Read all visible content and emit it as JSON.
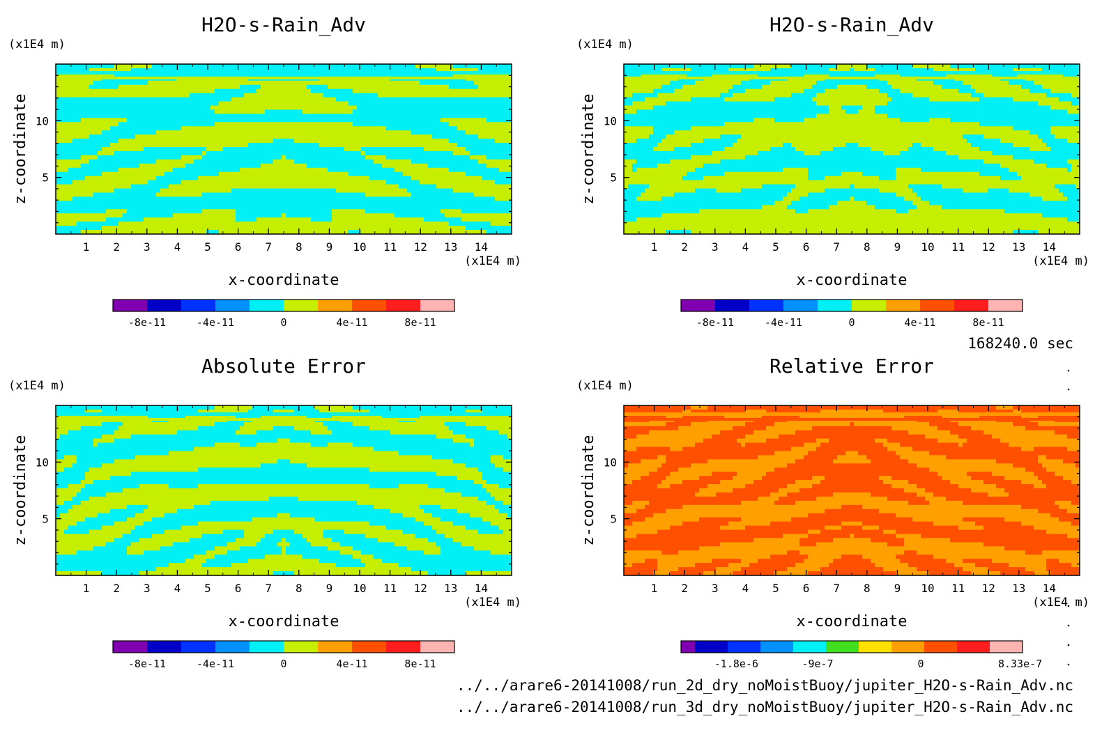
{
  "time_label": "168240.0 sec",
  "files": [
    "../../arare6-20141008/run_2d_dry_noMoistBuoy/jupiter_H2O-s-Rain_Adv.nc",
    "../../arare6-20141008/run_3d_dry_noMoistBuoy/jupiter_H2O-s-Rain_Adv.nc"
  ],
  "chart_data": [
    {
      "type": "heatmap",
      "title": "H2O-s-Rain_Adv",
      "xlabel": "x-coordinate",
      "ylabel": "z-coordinate",
      "x_unit": "(x1E4 m)",
      "y_unit": "(x1E4 m)",
      "xlim": [
        0,
        15
      ],
      "ylim": [
        0,
        15
      ],
      "x_ticks": [
        "1",
        "2",
        "3",
        "4",
        "5",
        "6",
        "7",
        "8",
        "9",
        "10",
        "11",
        "12",
        "13",
        "14"
      ],
      "y_ticks": [
        "5",
        "10"
      ],
      "pattern": "sym",
      "dominant_colors": [
        "#c6ee00",
        "#00f0f6"
      ],
      "colorbar": {
        "colors": [
          "#8000b0",
          "#0000c8",
          "#0032ff",
          "#0090ff",
          "#00f0f6",
          "#c6ee00",
          "#ffa000",
          "#ff5000",
          "#ff1e1e",
          "#ffb4b4"
        ],
        "tick_labels": [
          "-8e-11",
          "-4e-11",
          "0",
          "4e-11",
          "8e-11"
        ]
      }
    },
    {
      "type": "heatmap",
      "title": "H2O-s-Rain_Adv",
      "xlabel": "x-coordinate",
      "ylabel": "z-coordinate",
      "x_unit": "(x1E4 m)",
      "y_unit": "(x1E4 m)",
      "xlim": [
        0,
        15
      ],
      "ylim": [
        0,
        15
      ],
      "x_ticks": [
        "1",
        "2",
        "3",
        "4",
        "5",
        "6",
        "7",
        "8",
        "9",
        "10",
        "11",
        "12",
        "13",
        "14"
      ],
      "y_ticks": [
        "5",
        "10"
      ],
      "pattern": "sym",
      "dominant_colors": [
        "#c6ee00",
        "#00f0f6"
      ],
      "colorbar": {
        "colors": [
          "#8000b0",
          "#0000c8",
          "#0032ff",
          "#0090ff",
          "#00f0f6",
          "#c6ee00",
          "#ffa000",
          "#ff5000",
          "#ff1e1e",
          "#ffb4b4"
        ],
        "tick_labels": [
          "-8e-11",
          "-4e-11",
          "0",
          "4e-11",
          "8e-11"
        ]
      }
    },
    {
      "type": "heatmap",
      "title": "Absolute Error",
      "xlabel": "x-coordinate",
      "ylabel": "z-coordinate",
      "x_unit": "(x1E4 m)",
      "y_unit": "(x1E4 m)",
      "xlim": [
        0,
        15
      ],
      "ylim": [
        0,
        15
      ],
      "x_ticks": [
        "1",
        "2",
        "3",
        "4",
        "5",
        "6",
        "7",
        "8",
        "9",
        "10",
        "11",
        "12",
        "13",
        "14"
      ],
      "y_ticks": [
        "5",
        "10"
      ],
      "pattern": "err",
      "dominant_colors": [
        "#c6ee00",
        "#00f0f6"
      ],
      "colorbar": {
        "colors": [
          "#8000b0",
          "#0000c8",
          "#0032ff",
          "#0090ff",
          "#00f0f6",
          "#c6ee00",
          "#ffa000",
          "#ff5000",
          "#ff1e1e",
          "#ffb4b4"
        ],
        "tick_labels": [
          "-8e-11",
          "-4e-11",
          "0",
          "4e-11",
          "8e-11"
        ]
      }
    },
    {
      "type": "heatmap",
      "title": "Relative Error",
      "xlabel": "x-coordinate",
      "ylabel": "z-coordinate",
      "x_unit": "(x1E4 m)",
      "y_unit": "(x1E4 m)",
      "xlim": [
        0,
        15
      ],
      "ylim": [
        0,
        15
      ],
      "x_ticks": [
        "1",
        "2",
        "3",
        "4",
        "5",
        "6",
        "7",
        "8",
        "9",
        "10",
        "11",
        "12",
        "13",
        "14"
      ],
      "y_ticks": [
        "5",
        "10"
      ],
      "pattern": "rel",
      "dominant_colors": [
        "#ff5000",
        "#ffa000"
      ],
      "colorbar": {
        "colors": [
          "#8000b0",
          "#0000c8",
          "#0032ff",
          "#0090ff",
          "#00f0f6",
          "#40e020",
          "#ffe000",
          "#ffa000",
          "#ff5000",
          "#ff1e1e",
          "#ffb4b4"
        ],
        "tick_labels": [
          "-1.8e-6",
          "-9e-7",
          "0",
          "8.33e-7"
        ]
      }
    }
  ]
}
